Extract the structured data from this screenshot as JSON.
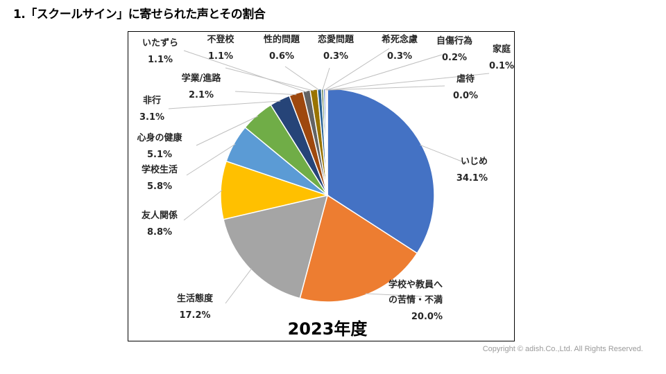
{
  "page": {
    "title": "1.「スクールサイン」に寄せられた声とその割合",
    "copyright": "Copyright © adish.Co.,Ltd.  All Rights Reserved."
  },
  "chart_data": {
    "type": "pie",
    "title": "2023年度",
    "unit": "%",
    "legend": "none (labels with leader lines)",
    "slices": [
      {
        "label": [
          "いじめ"
        ],
        "value": 34.1,
        "value_text": "34.1%",
        "color": "#4472C4"
      },
      {
        "label": [
          "学校や教員へ",
          "の苦情・不満"
        ],
        "value": 20.0,
        "value_text": "20.0%",
        "color": "#ED7D31"
      },
      {
        "label": [
          "生活態度"
        ],
        "value": 17.2,
        "value_text": "17.2%",
        "color": "#A5A5A5"
      },
      {
        "label": [
          "友人関係"
        ],
        "value": 8.8,
        "value_text": "8.8%",
        "color": "#FFC000"
      },
      {
        "label": [
          "学校生活"
        ],
        "value": 5.8,
        "value_text": "5.8%",
        "color": "#5B9BD5"
      },
      {
        "label": [
          "心身の健康"
        ],
        "value": 5.1,
        "value_text": "5.1%",
        "color": "#70AD47"
      },
      {
        "label": [
          "非行"
        ],
        "value": 3.1,
        "value_text": "3.1%",
        "color": "#264478"
      },
      {
        "label": [
          "学業/進路"
        ],
        "value": 2.1,
        "value_text": "2.1%",
        "color": "#9E480E"
      },
      {
        "label": [
          "いたずら"
        ],
        "value": 1.1,
        "value_text": "1.1%",
        "color": "#636363"
      },
      {
        "label": [
          "不登校"
        ],
        "value": 1.1,
        "value_text": "1.1%",
        "color": "#997300"
      },
      {
        "label": [
          "性的問題"
        ],
        "value": 0.6,
        "value_text": "0.6%",
        "color": "#255E91"
      },
      {
        "label": [
          "恋愛問題"
        ],
        "value": 0.3,
        "value_text": "0.3%",
        "color": "#43682B"
      },
      {
        "label": [
          "希死念慮"
        ],
        "value": 0.3,
        "value_text": "0.3%",
        "color": "#698ED0"
      },
      {
        "label": [
          "自傷行為"
        ],
        "value": 0.2,
        "value_text": "0.2%",
        "color": "#F1975A"
      },
      {
        "label": [
          "家庭"
        ],
        "value": 0.1,
        "value_text": "0.1%",
        "color": "#B7B7B7"
      },
      {
        "label": [
          "虐待"
        ],
        "value": 0.0,
        "value_text": "0.0%",
        "color": "#FFCD33"
      }
    ]
  }
}
